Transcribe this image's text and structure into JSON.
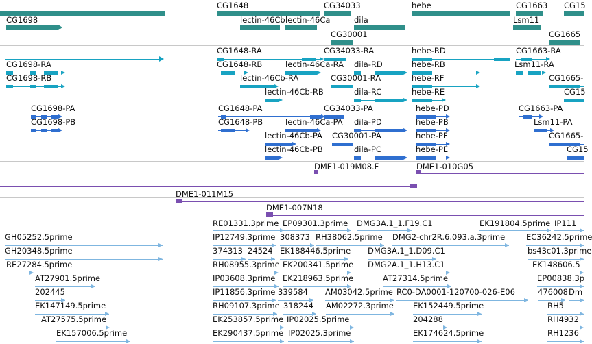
{
  "colors": {
    "gene": "#2f8f8a",
    "transcript": "#18a3c2",
    "protein": "#2f6fd0",
    "bac": "#7a4fb0",
    "est": "#7fb6e0",
    "separator": "#c8c8c8",
    "text": "#111111"
  },
  "icons": {
    "arrow_right": "arrow-right-icon",
    "arrow_left": "arrow-left-icon",
    "exon_arrows": "exon-arrows-icon"
  },
  "tracks": {
    "genes": {
      "features": [
        {
          "label": "CG1698"
        },
        {
          "label": "CG1648"
        },
        {
          "label": "CG34033"
        },
        {
          "label": "hebe"
        },
        {
          "label": "CG1663"
        },
        {
          "label": "CG15"
        },
        {
          "label": "lectin-46Cb"
        },
        {
          "label": "lectin-46Ca"
        },
        {
          "label": "dila"
        },
        {
          "label": "Lsm11"
        },
        {
          "label": "CG30001"
        },
        {
          "label": "CG1665"
        }
      ]
    },
    "transcripts": {
      "features": [
        {
          "label": "CG1648-RA"
        },
        {
          "label": "CG34033-RA"
        },
        {
          "label": "hebe-RD"
        },
        {
          "label": "CG1663-RA"
        },
        {
          "label": "CG1698-RA"
        },
        {
          "label": "CG1648-RB"
        },
        {
          "label": "lectin-46Ca-RA"
        },
        {
          "label": "dila-RD"
        },
        {
          "label": "hebe-RB"
        },
        {
          "label": "Lsm11-RA"
        },
        {
          "label": "CG1698-RB"
        },
        {
          "label": "lectin-46Cb-RA"
        },
        {
          "label": "CG30001-RA"
        },
        {
          "label": "hebe-RF"
        },
        {
          "label": "CG1665-"
        },
        {
          "label": "lectin-46Cb-RB"
        },
        {
          "label": "dila-RC"
        },
        {
          "label": "hebe-RE"
        },
        {
          "label": "CG15"
        }
      ]
    },
    "proteins": {
      "features": [
        {
          "label": "CG1698-PA"
        },
        {
          "label": "CG1648-PA"
        },
        {
          "label": "CG34033-PA"
        },
        {
          "label": "hebe-PD"
        },
        {
          "label": "CG1663-PA"
        },
        {
          "label": "CG1698-PB"
        },
        {
          "label": "CG1648-PB"
        },
        {
          "label": "lectin-46Ca-PA"
        },
        {
          "label": "dila-PD"
        },
        {
          "label": "hebe-PB"
        },
        {
          "label": "Lsm11-PA"
        },
        {
          "label": "lectin-46Cb-PA"
        },
        {
          "label": "CG30001-PA"
        },
        {
          "label": "hebe-PF"
        },
        {
          "label": "CG1665-"
        },
        {
          "label": "lectin-46Cb-PB"
        },
        {
          "label": "dila-PC"
        },
        {
          "label": "hebe-PE"
        },
        {
          "label": "CG15"
        }
      ]
    },
    "bacs": {
      "features": [
        {
          "label": "DME1-019M08.F"
        },
        {
          "label": "DME1-010G05"
        },
        {
          "label": "DME1-011M15"
        },
        {
          "label": "DME1-007N18"
        }
      ]
    },
    "ests": {
      "features": [
        {
          "label": "RE01331.3prime"
        },
        {
          "label": "EP09301.3prime"
        },
        {
          "label": "DMG3A.1_1.F19.C1"
        },
        {
          "label": "EK191804.5prime"
        },
        {
          "label": "IP111"
        },
        {
          "label": "GH05252.5prime"
        },
        {
          "label": "IP12749.3prime"
        },
        {
          "label": "308373"
        },
        {
          "label": "RH38062.5prime"
        },
        {
          "label": "DMG2-chr2R.6.093.a.3prime"
        },
        {
          "label": "EC36242.5prime"
        },
        {
          "label": "GH20348.5prime"
        },
        {
          "label": "374313"
        },
        {
          "label": "24524"
        },
        {
          "label": "EK188446.5prime"
        },
        {
          "label": "DMG3A.1_1.D09.C1"
        },
        {
          "label": "bs43c01.3prime"
        },
        {
          "label": "RE27284.5prime"
        },
        {
          "label": "RH08955.3prime"
        },
        {
          "label": "EK200341.5prime"
        },
        {
          "label": "DMG2A.1_1.H13.C1"
        },
        {
          "label": "EK148606.5"
        },
        {
          "label": "AT27901.5prime"
        },
        {
          "label": "IP03608.3prime"
        },
        {
          "label": "EK218963.5prime"
        },
        {
          "label": "AT27314.5prime"
        },
        {
          "label": "EP00838.3p"
        },
        {
          "label": "202445"
        },
        {
          "label": "IP11856.3prime"
        },
        {
          "label": "339584"
        },
        {
          "label": "AM03042.5prime"
        },
        {
          "label": "RC0-DA0001-120700-026-E06"
        },
        {
          "label": "476008"
        },
        {
          "label": "Dm"
        },
        {
          "label": "EK147149.5prime"
        },
        {
          "label": "RH09107.3prime"
        },
        {
          "label": "318244"
        },
        {
          "label": "AM02272.3prime"
        },
        {
          "label": "RH5"
        },
        {
          "label": "AT27575.5prime"
        },
        {
          "label": "EK253857.5prime"
        },
        {
          "label": "IP02025.5prime"
        },
        {
          "label": "EK152449.5prime"
        },
        {
          "label": "RH4932"
        },
        {
          "label": "204288"
        },
        {
          "label": "EK157006.5prime"
        },
        {
          "label": "EK290437.5prime"
        },
        {
          "label": "IP02025.3prime"
        },
        {
          "label": "EK174624.5prime"
        },
        {
          "label": "RH1236"
        }
      ]
    }
  }
}
